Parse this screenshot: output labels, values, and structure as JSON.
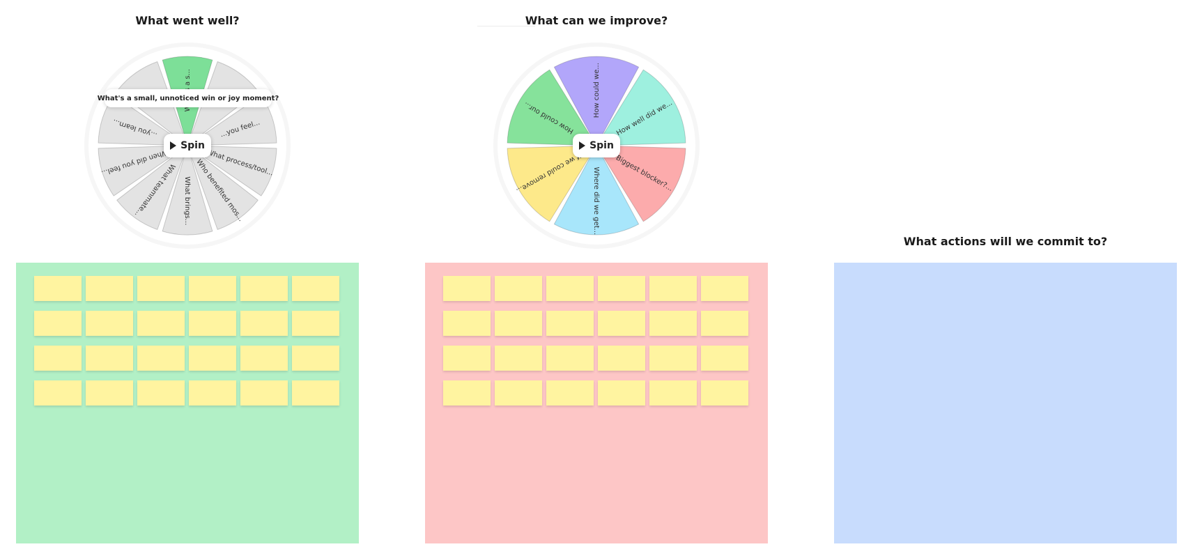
{
  "columns": [
    {
      "title": "What went well?",
      "area_color": "#b2f0c6"
    },
    {
      "title": "What can we improve?",
      "area_color": "#fdc6c6"
    },
    {
      "title": "What actions will we commit to?",
      "area_color": "#c8dcfd"
    }
  ],
  "wheel_left": {
    "spin_label": "Spin",
    "tooltip": "What's a small, unnoticed win or joy moment?",
    "segments": [
      {
        "label": "What's a s...",
        "color": "#7ddf98"
      },
      {
        "label": "...",
        "color": "#e3e3e3"
      },
      {
        "label": "...you feel...",
        "color": "#e3e3e3"
      },
      {
        "label": "What process/tool...",
        "color": "#e3e3e3"
      },
      {
        "label": "Who benefited mos...",
        "color": "#e3e3e3"
      },
      {
        "label": "What brings...",
        "color": "#e3e3e3"
      },
      {
        "label": "What teammate...",
        "color": "#e3e3e3"
      },
      {
        "label": "When did you feel...",
        "color": "#e3e3e3"
      },
      {
        "label": "...you learn...",
        "color": "#e3e3e3"
      },
      {
        "label": "...",
        "color": "#e3e3e3"
      }
    ]
  },
  "wheel_right": {
    "spin_label": "Spin",
    "segments": [
      {
        "label": "How could we...",
        "color": "#b2a6fa"
      },
      {
        "label": "How well did we...",
        "color": "#9ef0df"
      },
      {
        "label": "Biggest blocker?...",
        "color": "#fcabac"
      },
      {
        "label": "Where did we get...",
        "color": "#a8e6fb"
      },
      {
        "label": "If we could remove...",
        "color": "#fde98a"
      },
      {
        "label": "How could our...",
        "color": "#86e29b"
      }
    ]
  },
  "sticky_notes": {
    "rows": 4,
    "cols": 6,
    "color": "#fff4a0"
  }
}
